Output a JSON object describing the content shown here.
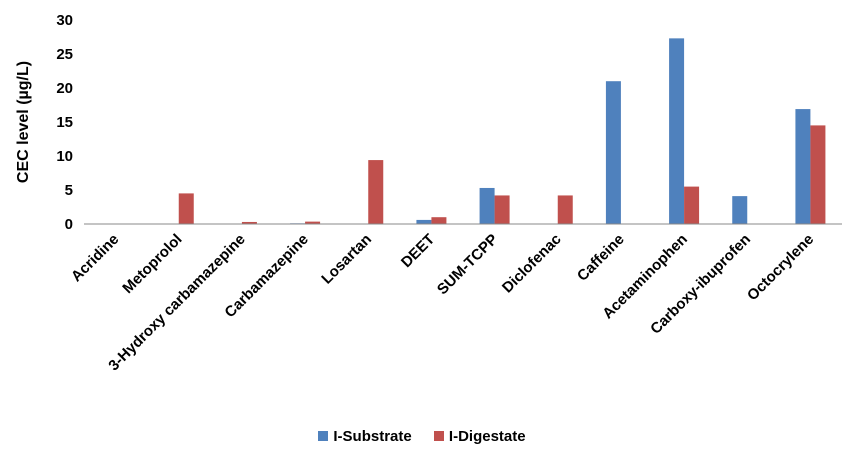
{
  "chart_data": {
    "type": "bar",
    "title": "",
    "xlabel": "",
    "ylabel": "CEC level (µg/L)",
    "ylim": [
      0,
      30
    ],
    "yticks": [
      0,
      5,
      10,
      15,
      20,
      25,
      30
    ],
    "grid": false,
    "legend_position": "bottom",
    "categories": [
      "Acridine",
      "Metoprolol",
      "3-Hydroxy carbamazepine",
      "Carbamazepine",
      "Losartan",
      "DEET",
      "SUM-TCPP",
      "Diclofenac",
      "Caffeine",
      "Acetaminophen",
      "Carboxy-ibuprofen",
      "Octocrylene"
    ],
    "series": [
      {
        "name": "I-Substrate",
        "color": "#4F81BD",
        "values": [
          0,
          0,
          0,
          0.1,
          0,
          0.6,
          5.3,
          0,
          21.0,
          27.3,
          4.1,
          16.9
        ]
      },
      {
        "name": "I-Digestate",
        "color": "#C0504D",
        "values": [
          0,
          4.5,
          0.3,
          0.35,
          9.4,
          1.0,
          4.2,
          4.2,
          0,
          5.5,
          0,
          14.5
        ]
      }
    ]
  }
}
